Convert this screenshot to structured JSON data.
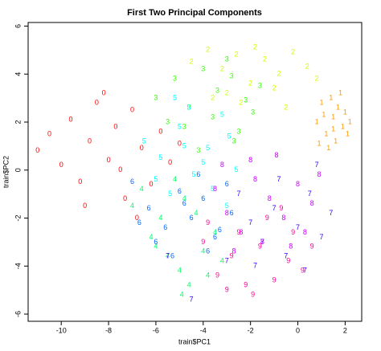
{
  "chart_data": {
    "type": "scatter",
    "title": "First Two Principal Components",
    "x_label": "train$PC1",
    "y_label": "train$PC2",
    "xlim": [
      -11.4,
      2.7
    ],
    "ylim": [
      -6.3,
      6.15
    ],
    "xticks": [
      -10,
      -8,
      -6,
      -4,
      -2,
      0,
      2
    ],
    "yticks": [
      -6,
      -4,
      -2,
      0,
      2,
      4,
      6
    ],
    "series": [
      {
        "name": "0",
        "color": "#FF0000",
        "x": [
          -11,
          -10.5,
          -10,
          -9.6,
          -9.2,
          -8.8,
          -8.5,
          -8,
          -7.7,
          -7.3,
          -7,
          -6.6,
          -6.2,
          -5.8,
          -5.4,
          -5,
          -9,
          -8.2,
          -7.5,
          -6.8
        ],
        "y": [
          0.8,
          1.5,
          0.2,
          2.1,
          -0.5,
          1.2,
          2.8,
          0.4,
          1.8,
          -1.2,
          2.5,
          0.9,
          -0.6,
          1.6,
          0.3,
          1.1,
          -1.5,
          3.2,
          0.0,
          -2.0
        ]
      },
      {
        "name": "1",
        "color": "#FF9900",
        "x": [
          0.8,
          1.0,
          1.2,
          1.4,
          1.5,
          1.6,
          1.7,
          1.9,
          2.0,
          2.1,
          1.3,
          1.8,
          1.1,
          1.5,
          2.2,
          0.9
        ],
        "y": [
          2.0,
          2.8,
          1.5,
          3.0,
          2.2,
          1.2,
          2.6,
          1.8,
          2.4,
          1.5,
          0.9,
          3.2,
          2.3,
          1.7,
          2.0,
          1.1
        ]
      },
      {
        "name": "2",
        "color": "#CCFF00",
        "x": [
          -4.5,
          -3.8,
          -3.2,
          -2.6,
          -2.0,
          -1.4,
          -0.8,
          -0.2,
          0.4,
          -3.0,
          -1.8,
          -1.0,
          -2.4,
          0.8,
          -3.6,
          -0.5
        ],
        "y": [
          4.5,
          5.0,
          4.2,
          4.8,
          3.6,
          4.6,
          4.0,
          4.9,
          4.3,
          3.2,
          5.1,
          3.4,
          2.8,
          3.8,
          3.0,
          2.6
        ]
      },
      {
        "name": "3",
        "color": "#33FF00",
        "x": [
          -6.0,
          -5.2,
          -4.6,
          -4.0,
          -3.4,
          -2.8,
          -2.2,
          -1.6,
          -4.8,
          -3.6,
          -2.5,
          -5.5,
          -3.0,
          -1.9,
          -4.2,
          -2.7
        ],
        "y": [
          3.0,
          3.8,
          2.6,
          4.2,
          3.3,
          3.9,
          2.9,
          3.5,
          1.8,
          2.2,
          1.6,
          2.0,
          4.6,
          2.4,
          0.8,
          1.2
        ]
      },
      {
        "name": "4",
        "color": "#00FF66",
        "x": [
          -7.0,
          -6.2,
          -5.5,
          -5.0,
          -4.6,
          -4.0,
          -3.5,
          -6.6,
          -5.8,
          -4.8,
          -3.8,
          -5.2,
          -4.3,
          -6.0,
          -3.2,
          -4.9
        ],
        "y": [
          -1.5,
          -2.8,
          -3.6,
          -4.2,
          -4.8,
          -3.4,
          -2.6,
          -0.8,
          -2.0,
          -1.2,
          -4.4,
          -0.4,
          -1.8,
          -3.2,
          -3.8,
          -5.2
        ]
      },
      {
        "name": "5",
        "color": "#00FFFF",
        "x": [
          -6.5,
          -5.8,
          -5.0,
          -4.4,
          -3.8,
          -3.2,
          -2.6,
          -5.4,
          -4.6,
          -3.6,
          -2.9,
          -6.0,
          -4.0,
          -3.0,
          -5.2,
          -4.8
        ],
        "y": [
          1.2,
          0.5,
          1.8,
          -0.2,
          0.9,
          2.3,
          0.0,
          -1.0,
          2.6,
          -0.8,
          1.4,
          -0.4,
          0.3,
          -1.5,
          3.0,
          1.0
        ]
      },
      {
        "name": "6",
        "color": "#0066FF",
        "x": [
          -7.0,
          -6.3,
          -5.6,
          -5.0,
          -4.5,
          -4.0,
          -3.5,
          -3.0,
          -6.0,
          -5.3,
          -4.2,
          -3.8,
          -2.8,
          -6.7,
          -4.8,
          -3.3
        ],
        "y": [
          -0.5,
          -1.6,
          -2.4,
          -0.9,
          -2.0,
          -1.2,
          -2.8,
          -0.6,
          -3.0,
          -3.6,
          -0.2,
          -3.4,
          -1.8,
          -2.2,
          -1.4,
          -2.5
        ]
      },
      {
        "name": "7",
        "color": "#3300FF",
        "x": [
          -2.5,
          -2.0,
          -1.5,
          -1.0,
          -0.5,
          0.0,
          0.5,
          1.0,
          -1.8,
          -0.8,
          0.3,
          1.4,
          -5.5,
          -4.5,
          -3.0,
          0.8
        ],
        "y": [
          -1.0,
          -2.2,
          -3.0,
          -1.6,
          -3.6,
          -2.4,
          -1.0,
          -2.8,
          -4.0,
          -0.4,
          -4.2,
          -1.8,
          -3.6,
          -5.4,
          -3.8,
          0.2
        ]
      },
      {
        "name": "8",
        "color": "#CC00FF",
        "x": [
          -3.5,
          -3.0,
          -2.4,
          -1.8,
          -1.2,
          -0.6,
          0.0,
          0.6,
          -2.7,
          -1.5,
          -0.3,
          0.9,
          -2.0,
          -0.9,
          0.3,
          -3.2
        ],
        "y": [
          -0.8,
          -1.8,
          -2.6,
          -0.4,
          -1.2,
          -2.0,
          -0.6,
          -1.4,
          -3.4,
          -3.0,
          -3.2,
          -0.2,
          0.4,
          0.6,
          -2.6,
          0.2
        ]
      },
      {
        "name": "9",
        "color": "#FF0099",
        "x": [
          -4.0,
          -3.4,
          -2.8,
          -2.2,
          -1.6,
          -1.0,
          -0.4,
          0.2,
          -3.8,
          -2.5,
          -1.3,
          -0.2,
          0.6,
          -3.0,
          -1.9,
          -0.7
        ],
        "y": [
          -3.0,
          -4.4,
          -3.6,
          -4.8,
          -3.2,
          -4.6,
          -3.8,
          -4.2,
          -2.2,
          -2.6,
          -2.0,
          -2.6,
          -3.2,
          -5.0,
          -5.2,
          -1.6
        ]
      }
    ]
  }
}
